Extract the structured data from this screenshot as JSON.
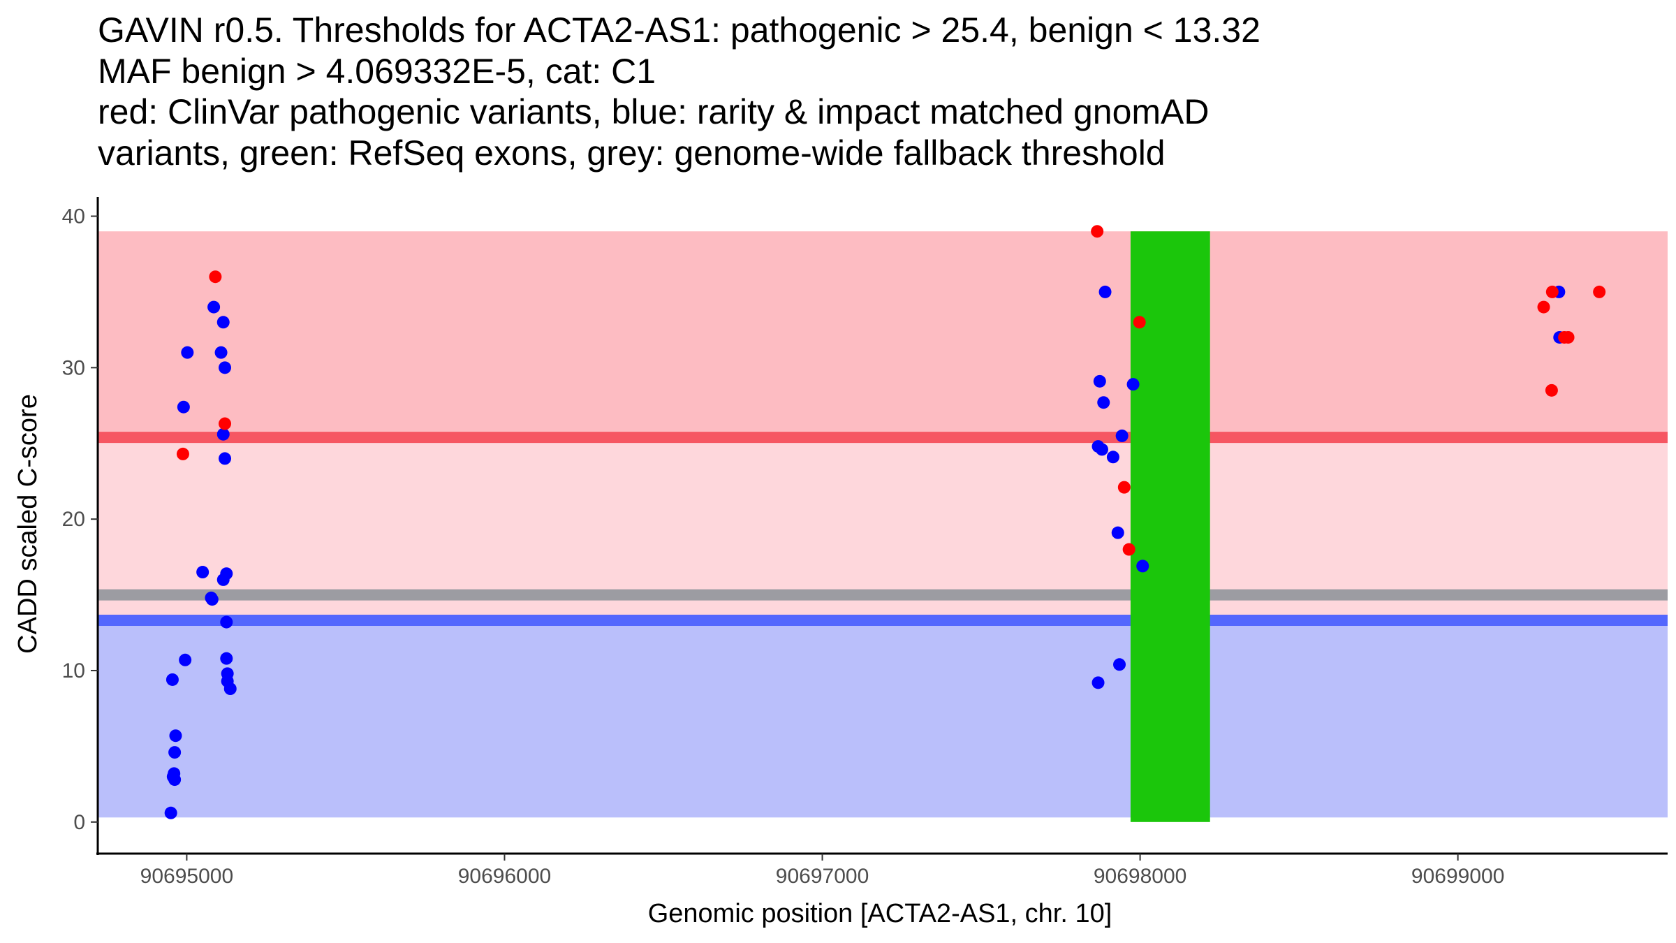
{
  "chart_data": {
    "type": "scatter",
    "title": [
      "GAVIN r0.5. Thresholds for ACTA2-AS1: pathogenic > 25.4, benign < 13.32",
      "MAF benign > 4.069332E-5, cat: C1",
      "red: ClinVar pathogenic variants, blue: rarity & impact matched gnomAD",
      "variants, green: RefSeq exons, grey: genome-wide fallback threshold"
    ],
    "xlabel": "Genomic position [ACTA2-AS1, chr. 10]",
    "ylabel": "CADD scaled C-score",
    "xlim": [
      90694720,
      90699660
    ],
    "ylim": [
      -1.9,
      40.9
    ],
    "x_ticks": [
      90695000,
      90696000,
      90697000,
      90698000,
      90699000
    ],
    "x_tick_labels": [
      "90695000",
      "90696000",
      "90697000",
      "90698000",
      "90699000"
    ],
    "y_ticks": [
      0,
      10,
      20,
      30,
      40
    ],
    "y_tick_labels": [
      "0",
      "10",
      "20",
      "30",
      "40"
    ],
    "grid": false,
    "colors": {
      "pathogenic_zone": "#fdbcc2",
      "vus_zone": "#fed7dc",
      "benign_zone": "#babffb",
      "pathogenic_threshold": "#f65662",
      "benign_threshold": "#5467fd",
      "fallback_threshold": "#9c9ca2",
      "exon": "#1bc60b",
      "pathogenic_point": "#ff0000",
      "benign_point": "#0000ff"
    },
    "regions": [
      {
        "name": "pathogenic-zone",
        "y0": 25.4,
        "y1": 39.0,
        "color_key": "pathogenic_zone"
      },
      {
        "name": "uncertain-zone",
        "y0": 13.32,
        "y1": 25.4,
        "color_key": "vus_zone"
      },
      {
        "name": "benign-zone",
        "y0": 0.3,
        "y1": 13.32,
        "color_key": "benign_zone"
      }
    ],
    "threshold_lines": [
      {
        "name": "pathogenic-threshold-line",
        "y": 25.4,
        "color_key": "pathogenic_threshold"
      },
      {
        "name": "fallback-threshold-line",
        "y": 15.0,
        "color_key": "fallback_threshold"
      },
      {
        "name": "benign-threshold-line",
        "y": 13.32,
        "color_key": "benign_threshold"
      }
    ],
    "exons": [
      {
        "name": "refseq-exon",
        "x0": 90697970,
        "x1": 90698220,
        "y0": 0,
        "y1": 39.0,
        "color_key": "exon"
      }
    ],
    "series": [
      {
        "name": "gnomAD matched variants",
        "color_key": "benign_point",
        "points": [
          {
            "x": 90694950,
            "y": 0.6
          },
          {
            "x": 90694957,
            "y": 3.0
          },
          {
            "x": 90694962,
            "y": 2.8
          },
          {
            "x": 90694960,
            "y": 3.2
          },
          {
            "x": 90694962,
            "y": 4.6
          },
          {
            "x": 90694965,
            "y": 5.7
          },
          {
            "x": 90694955,
            "y": 9.4
          },
          {
            "x": 90694995,
            "y": 10.7
          },
          {
            "x": 90694990,
            "y": 27.4
          },
          {
            "x": 90695002,
            "y": 31.0
          },
          {
            "x": 90695050,
            "y": 16.5
          },
          {
            "x": 90695077,
            "y": 14.8
          },
          {
            "x": 90695080,
            "y": 14.7
          },
          {
            "x": 90695085,
            "y": 34.0
          },
          {
            "x": 90695108,
            "y": 31.0
          },
          {
            "x": 90695115,
            "y": 33.0
          },
          {
            "x": 90695115,
            "y": 25.6
          },
          {
            "x": 90695115,
            "y": 16.0
          },
          {
            "x": 90695120,
            "y": 30.0
          },
          {
            "x": 90695120,
            "y": 24.0
          },
          {
            "x": 90695125,
            "y": 16.4
          },
          {
            "x": 90695125,
            "y": 13.2
          },
          {
            "x": 90695125,
            "y": 10.8
          },
          {
            "x": 90695128,
            "y": 9.8
          },
          {
            "x": 90695128,
            "y": 9.3
          },
          {
            "x": 90695137,
            "y": 8.8
          },
          {
            "x": 90697868,
            "y": 24.8
          },
          {
            "x": 90697868,
            "y": 9.2
          },
          {
            "x": 90697873,
            "y": 29.1
          },
          {
            "x": 90697880,
            "y": 24.6
          },
          {
            "x": 90697885,
            "y": 27.7
          },
          {
            "x": 90697890,
            "y": 35.0
          },
          {
            "x": 90697915,
            "y": 24.1
          },
          {
            "x": 90697930,
            "y": 19.1
          },
          {
            "x": 90697935,
            "y": 10.4
          },
          {
            "x": 90697943,
            "y": 25.5
          },
          {
            "x": 90697978,
            "y": 28.9
          },
          {
            "x": 90698008,
            "y": 16.9
          },
          {
            "x": 90699318,
            "y": 35.0
          },
          {
            "x": 90699320,
            "y": 32.0
          }
        ]
      },
      {
        "name": "ClinVar pathogenic variants",
        "color_key": "pathogenic_point",
        "points": [
          {
            "x": 90694988,
            "y": 24.3
          },
          {
            "x": 90695090,
            "y": 36.0
          },
          {
            "x": 90695120,
            "y": 26.3
          },
          {
            "x": 90697865,
            "y": 39.0
          },
          {
            "x": 90697950,
            "y": 22.1
          },
          {
            "x": 90697965,
            "y": 18.0
          },
          {
            "x": 90697998,
            "y": 33.0
          },
          {
            "x": 90699270,
            "y": 34.0
          },
          {
            "x": 90699297,
            "y": 35.0
          },
          {
            "x": 90699295,
            "y": 28.5
          },
          {
            "x": 90699335,
            "y": 32.0
          },
          {
            "x": 90699347,
            "y": 32.0
          },
          {
            "x": 90699445,
            "y": 35.0
          }
        ]
      }
    ]
  }
}
